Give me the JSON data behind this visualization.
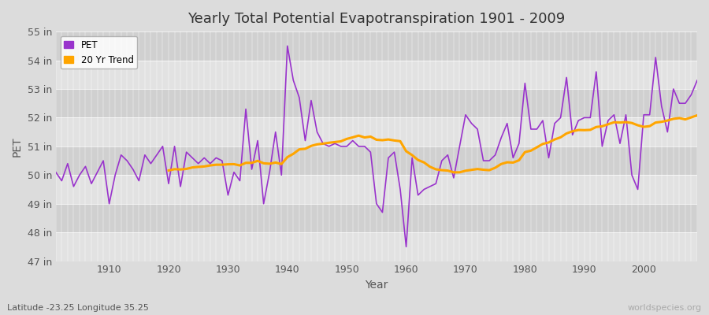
{
  "title": "Yearly Total Potential Evapotranspiration 1901 - 2009",
  "xlabel": "Year",
  "ylabel": "PET",
  "lat_lon_label": "Latitude -23.25 Longitude 35.25",
  "watermark": "worldspecies.org",
  "pet_color": "#9933CC",
  "trend_color": "#FFA500",
  "bg_color": "#DCDCDC",
  "band_light": "#E8E8E8",
  "band_dark": "#D4D4D4",
  "ytick_labels": [
    "47 in",
    "48 in",
    "49 in",
    "50 in",
    "51 in",
    "52 in",
    "53 in",
    "54 in",
    "55 in"
  ],
  "ytick_values": [
    47,
    48,
    49,
    50,
    51,
    52,
    53,
    54,
    55
  ],
  "years": [
    1901,
    1902,
    1903,
    1904,
    1905,
    1906,
    1907,
    1908,
    1909,
    1910,
    1911,
    1912,
    1913,
    1914,
    1915,
    1916,
    1917,
    1918,
    1919,
    1920,
    1921,
    1922,
    1923,
    1924,
    1925,
    1926,
    1927,
    1928,
    1929,
    1930,
    1931,
    1932,
    1933,
    1934,
    1935,
    1936,
    1937,
    1938,
    1939,
    1940,
    1941,
    1942,
    1943,
    1944,
    1945,
    1946,
    1947,
    1948,
    1949,
    1950,
    1951,
    1952,
    1953,
    1954,
    1955,
    1956,
    1957,
    1958,
    1959,
    1960,
    1961,
    1962,
    1963,
    1964,
    1965,
    1966,
    1967,
    1968,
    1969,
    1970,
    1971,
    1972,
    1973,
    1974,
    1975,
    1976,
    1977,
    1978,
    1979,
    1980,
    1981,
    1982,
    1983,
    1984,
    1985,
    1986,
    1987,
    1988,
    1989,
    1990,
    1991,
    1992,
    1993,
    1994,
    1995,
    1996,
    1997,
    1998,
    1999,
    2000,
    2001,
    2002,
    2003,
    2004,
    2005,
    2006,
    2007,
    2008,
    2009
  ],
  "pet_values": [
    50.1,
    49.8,
    50.4,
    49.6,
    50.0,
    50.3,
    49.7,
    50.1,
    50.5,
    49.0,
    50.0,
    50.7,
    50.5,
    50.2,
    49.8,
    50.7,
    50.4,
    50.7,
    51.0,
    49.7,
    51.0,
    49.6,
    50.8,
    50.6,
    50.4,
    50.6,
    50.4,
    50.6,
    50.5,
    49.3,
    50.1,
    49.8,
    52.3,
    50.2,
    51.2,
    49.0,
    50.1,
    51.5,
    50.0,
    54.5,
    53.3,
    52.7,
    51.2,
    52.6,
    51.5,
    51.1,
    51.0,
    51.1,
    51.0,
    51.0,
    51.2,
    51.0,
    51.0,
    50.8,
    49.0,
    48.7,
    50.6,
    50.8,
    49.5,
    47.5,
    50.6,
    49.3,
    49.5,
    49.6,
    49.7,
    50.5,
    50.7,
    49.9,
    51.0,
    52.1,
    51.8,
    51.6,
    50.5,
    50.5,
    50.7,
    51.3,
    51.8,
    50.6,
    51.1,
    53.2,
    51.6,
    51.6,
    51.9,
    50.6,
    51.8,
    52.0,
    53.4,
    51.4,
    51.9,
    52.0,
    52.0,
    53.6,
    51.0,
    51.9,
    52.1,
    51.1,
    52.1,
    50.0,
    49.5,
    52.1,
    52.1,
    54.1,
    52.4,
    51.5,
    53.0,
    52.5,
    52.5,
    52.8,
    53.3
  ],
  "ylim_min": 47,
  "ylim_max": 55,
  "xlim_min": 1901,
  "xlim_max": 2009,
  "trend_window": 20
}
